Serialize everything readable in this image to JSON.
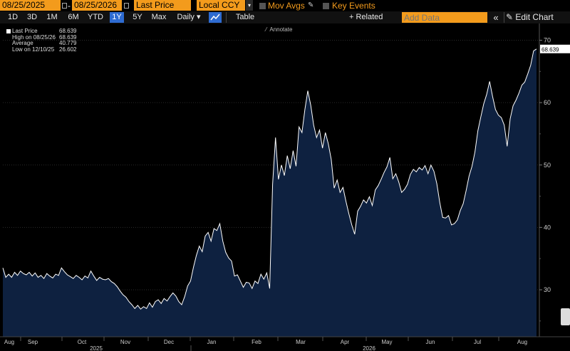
{
  "toolbar": {
    "start_date": "08/25/2025",
    "date_sep": "-",
    "end_date": "08/25/2026",
    "field": "Last Price",
    "currency": "Local CCY",
    "mov_avgs": "Mov Avgs",
    "key_events": "Key Events",
    "periods": [
      "1D",
      "3D",
      "1M",
      "6M",
      "YTD",
      "1Y",
      "5Y",
      "Max"
    ],
    "active_period": "1Y",
    "frequency": "Daily",
    "table_label": "Table",
    "related_data": "+ Related Data",
    "add_data_placeholder": "Add Data",
    "edit_chart": "Edit Chart",
    "collapse_glyph": "«"
  },
  "annotate_label": "Annotate",
  "legend": {
    "last_price_label": "Last Price",
    "last_price_value": "68.639",
    "high_label": "High on 08/25/26",
    "high_value": "68.639",
    "average_label": "Average",
    "average_value": "40.779",
    "low_label": "Low on 12/10/25",
    "low_value": "26.602"
  },
  "colors": {
    "accent": "#f39b1c",
    "area_fill": "#0e2140",
    "line": "#ffffff",
    "active_tab": "#2e6bd1"
  },
  "chart_data": {
    "type": "area",
    "ylim": [
      23,
      72
    ],
    "yticks": [
      30,
      40,
      50,
      60,
      70
    ],
    "last_value_label": "68.639",
    "month_labels": [
      "Aug",
      "Sep",
      "Oct",
      "Nov",
      "Dec",
      "Jan",
      "Feb",
      "Mar",
      "Apr",
      "May",
      "Jun",
      "Jul",
      "Aug"
    ],
    "year_labels": [
      "2025",
      "2026"
    ],
    "series": [
      {
        "values": [
          33.5,
          32.0,
          32.5,
          32.0,
          32.8,
          32.3,
          33.0,
          32.6,
          32.4,
          32.8,
          32.2,
          32.7,
          32.0,
          32.3,
          31.8,
          32.6,
          32.2,
          31.9,
          32.5,
          32.3,
          33.5,
          32.9,
          32.4,
          32.1,
          31.8,
          32.3,
          32.0,
          31.6,
          32.2,
          31.9,
          33.0,
          32.2,
          31.5,
          32.0,
          31.7,
          31.6,
          31.8,
          31.3,
          31.0,
          30.5,
          29.8,
          29.2,
          28.8,
          28.1,
          27.6,
          27.0,
          27.5,
          26.9,
          27.3,
          27.0,
          27.9,
          27.2,
          28.1,
          28.4,
          27.8,
          28.6,
          28.2,
          28.9,
          29.5,
          29.0,
          28.1,
          27.6,
          28.9,
          30.6,
          31.4,
          33.6,
          35.5,
          37.0,
          36.1,
          38.6,
          39.2,
          37.8,
          39.8,
          39.5,
          40.6,
          37.8,
          36.0,
          35.1,
          34.6,
          32.2,
          32.4,
          31.4,
          30.4,
          31.2,
          31.1,
          30.2,
          31.4,
          31.0,
          32.5,
          31.7,
          32.7,
          30.2,
          46.9,
          54.4,
          47.7,
          50.0,
          48.3,
          51.5,
          49.4,
          52.3,
          49.8,
          56.1,
          55.2,
          58.9,
          61.9,
          59.6,
          56.4,
          54.4,
          55.6,
          52.7,
          55.2,
          53.4,
          50.9,
          46.3,
          47.6,
          45.6,
          46.4,
          44.2,
          42.2,
          40.4,
          38.9,
          42.6,
          43.4,
          44.4,
          43.9,
          44.9,
          43.5,
          46.0,
          46.7,
          47.7,
          48.8,
          49.7,
          51.2,
          47.8,
          48.6,
          47.3,
          45.6,
          46.1,
          46.9,
          48.5,
          49.3,
          48.9,
          49.6,
          49.2,
          49.9,
          48.6,
          50.0,
          49.0,
          47.0,
          44.0,
          41.6,
          41.5,
          41.9,
          40.4,
          40.6,
          41.2,
          42.7,
          43.8,
          45.9,
          48.2,
          49.8,
          52.1,
          55.5,
          57.7,
          59.8,
          61.3,
          63.4,
          61.0,
          58.9,
          58.0,
          57.6,
          56.4,
          53.0,
          57.4,
          59.5,
          60.4,
          61.5,
          62.8,
          63.3,
          64.6,
          66.0,
          68.3,
          68.6
        ]
      }
    ]
  }
}
